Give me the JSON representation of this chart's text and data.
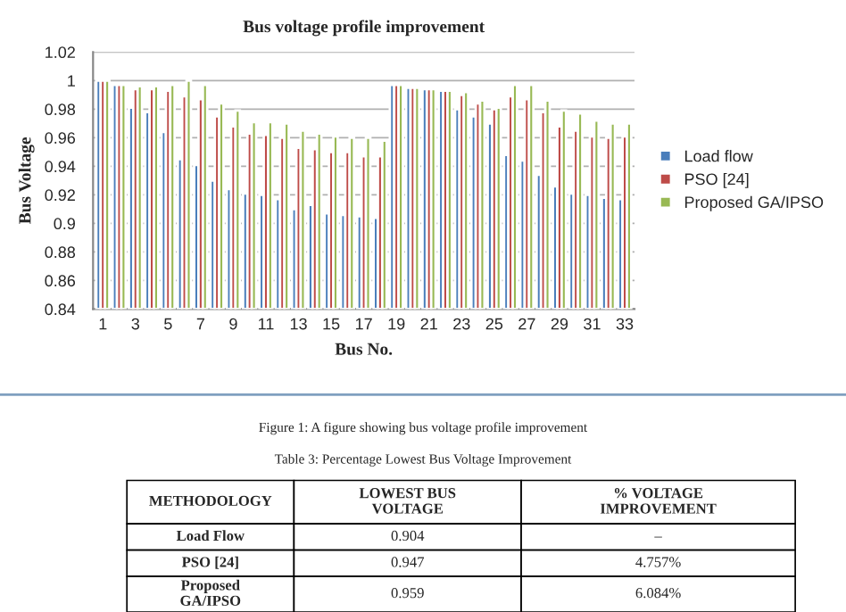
{
  "chart_data": {
    "type": "bar",
    "title": "Bus voltage profile improvement",
    "xlabel": "Bus No.",
    "ylabel": "Bus Voltage",
    "categories": [
      "1",
      null,
      "3",
      null,
      "5",
      null,
      "7",
      null,
      "9",
      null,
      "11",
      null,
      "13",
      null,
      "15",
      null,
      "17",
      null,
      "19",
      null,
      "21",
      null,
      "23",
      null,
      "25",
      null,
      "27",
      null,
      "29",
      null,
      "31",
      null,
      "33"
    ],
    "series": [
      {
        "name": "Load flow",
        "color": "#4a7ebb",
        "values": [
          1.0,
          0.997,
          0.981,
          0.978,
          0.964,
          0.945,
          0.941,
          0.93,
          0.924,
          0.921,
          0.92,
          0.917,
          0.91,
          0.913,
          0.907,
          0.906,
          0.905,
          0.904,
          0.997,
          0.995,
          0.994,
          0.993,
          0.98,
          0.975,
          0.97,
          0.948,
          0.944,
          0.934,
          0.926,
          0.921,
          0.92,
          0.918,
          0.917
        ]
      },
      {
        "name": "PSO [24]",
        "color": "#be4b48",
        "values": [
          1.0,
          0.997,
          0.994,
          0.994,
          0.993,
          0.989,
          0.987,
          0.975,
          0.968,
          0.963,
          0.962,
          0.96,
          0.953,
          0.952,
          0.95,
          0.95,
          0.947,
          0.947,
          0.997,
          0.995,
          0.994,
          0.993,
          0.99,
          0.984,
          0.98,
          0.989,
          0.987,
          0.978,
          0.968,
          0.965,
          0.961,
          0.96,
          0.961
        ]
      },
      {
        "name": "Proposed GA/IPSO",
        "color": "#98b954",
        "values": [
          1.0,
          0.997,
          0.996,
          0.996,
          0.997,
          1.0,
          0.997,
          0.984,
          0.979,
          0.971,
          0.971,
          0.97,
          0.965,
          0.963,
          0.961,
          0.96,
          0.96,
          0.958,
          0.997,
          0.995,
          0.994,
          0.993,
          0.992,
          0.986,
          0.981,
          0.997,
          0.997,
          0.986,
          0.979,
          0.977,
          0.972,
          0.97,
          0.97
        ]
      }
    ],
    "ylim": [
      0.84,
      1.02
    ],
    "yticks": [
      0.84,
      0.86,
      0.88,
      0.9,
      0.92,
      0.94,
      0.96,
      0.98,
      1,
      1.02
    ],
    "grid": "y",
    "legend": "right",
    "annotations": [
      "Figure 1: A figure showing bus voltage profile improvement",
      "Table 3: Percentage Lowest Bus Voltage Improvement",
      "METHODOLOGY",
      "LOWEST BUS\nVOLTAGE",
      "% VOLTAGE\nIMPROVEMENT",
      "Load Flow",
      "0.904",
      "–",
      "PSO [24]",
      "0.947",
      "4.757%",
      "Proposed\nGA/IPSO",
      "0.959",
      "6.084%"
    ]
  }
}
